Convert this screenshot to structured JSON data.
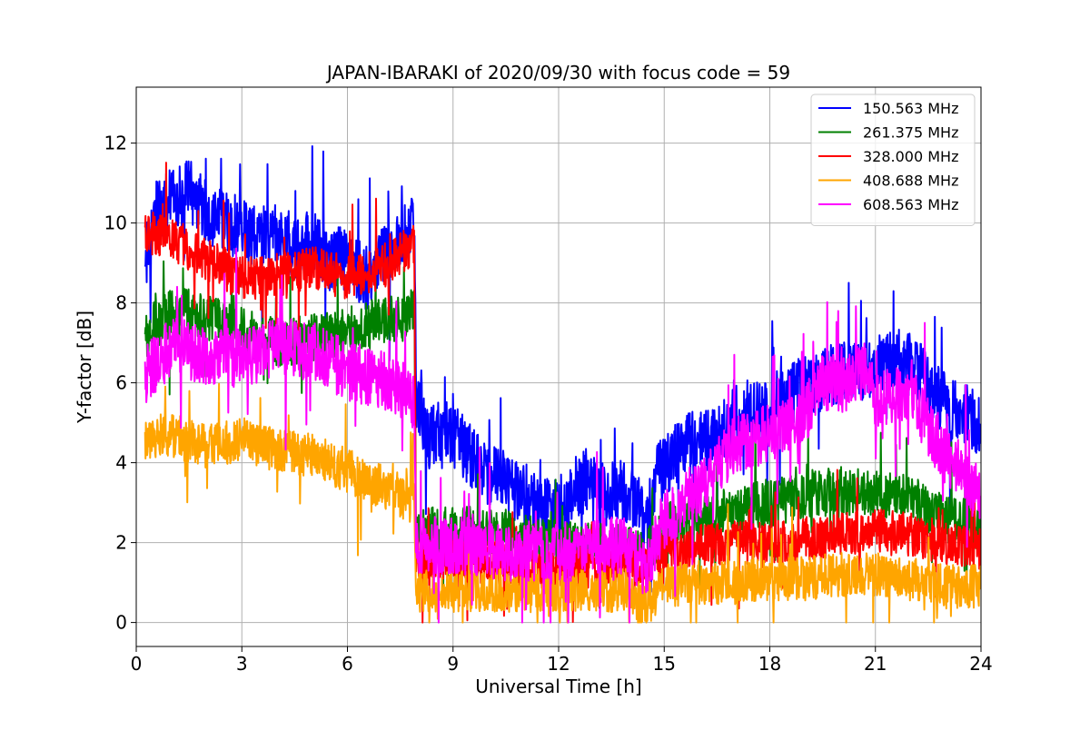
{
  "chart_data": {
    "type": "line",
    "title": "JAPAN-IBARAKI of 2020/09/30 with focus code = 59",
    "xlabel": "Universal Time [h]",
    "ylabel": "Y-factor [dB]",
    "xlim": [
      0,
      24
    ],
    "ylim": [
      -0.6,
      13.4
    ],
    "xticks": [
      0,
      3,
      6,
      9,
      12,
      15,
      18,
      21,
      24
    ],
    "yticks": [
      0,
      2,
      4,
      6,
      8,
      10,
      12
    ],
    "grid": true,
    "legend_position": "top-right",
    "data_start_hour": 0.25,
    "series": [
      {
        "name": "150.563 MHz",
        "color": "#0000ff",
        "noise": 0.8,
        "points": [
          [
            0.25,
            9.0
          ],
          [
            0.5,
            10.2
          ],
          [
            1.0,
            10.6
          ],
          [
            1.5,
            10.8
          ],
          [
            2.0,
            10.3
          ],
          [
            2.5,
            10.0
          ],
          [
            3.0,
            9.9
          ],
          [
            3.5,
            9.6
          ],
          [
            4.0,
            9.7
          ],
          [
            4.5,
            9.4
          ],
          [
            5.0,
            9.6
          ],
          [
            5.5,
            9.1
          ],
          [
            6.0,
            9.1
          ],
          [
            6.5,
            8.6
          ],
          [
            7.0,
            9.1
          ],
          [
            7.5,
            9.6
          ],
          [
            7.9,
            9.9
          ],
          [
            7.95,
            5.6
          ],
          [
            8.3,
            4.7
          ],
          [
            8.8,
            4.9
          ],
          [
            9.3,
            4.4
          ],
          [
            9.8,
            3.8
          ],
          [
            10.3,
            3.6
          ],
          [
            10.8,
            3.3
          ],
          [
            11.3,
            3.1
          ],
          [
            11.8,
            2.7
          ],
          [
            12.3,
            3.1
          ],
          [
            12.8,
            3.6
          ],
          [
            13.3,
            3.2
          ],
          [
            13.8,
            3.3
          ],
          [
            14.2,
            3.0
          ],
          [
            14.5,
            2.6
          ],
          [
            14.8,
            3.7
          ],
          [
            15.3,
            4.2
          ],
          [
            15.8,
            4.5
          ],
          [
            16.3,
            4.6
          ],
          [
            16.8,
            5.0
          ],
          [
            17.3,
            5.3
          ],
          [
            17.8,
            5.3
          ],
          [
            18.3,
            5.6
          ],
          [
            18.8,
            5.8
          ],
          [
            19.3,
            6.0
          ],
          [
            19.8,
            6.2
          ],
          [
            20.3,
            6.4
          ],
          [
            20.8,
            6.2
          ],
          [
            21.3,
            6.5
          ],
          [
            21.8,
            6.6
          ],
          [
            22.3,
            6.2
          ],
          [
            22.8,
            5.6
          ],
          [
            23.3,
            5.3
          ],
          [
            23.7,
            5.1
          ],
          [
            24.0,
            5.0
          ]
        ]
      },
      {
        "name": "261.375 MHz",
        "color": "#008000",
        "noise": 0.6,
        "points": [
          [
            0.25,
            7.2
          ],
          [
            0.6,
            7.5
          ],
          [
            1.2,
            7.9
          ],
          [
            2.0,
            7.6
          ],
          [
            3.0,
            7.3
          ],
          [
            4.0,
            7.0
          ],
          [
            5.0,
            7.1
          ],
          [
            6.0,
            7.3
          ],
          [
            7.0,
            7.6
          ],
          [
            7.6,
            7.6
          ],
          [
            7.9,
            8.0
          ],
          [
            7.95,
            2.2
          ],
          [
            8.5,
            2.3
          ],
          [
            9.5,
            2.3
          ],
          [
            10.5,
            2.2
          ],
          [
            11.5,
            2.0
          ],
          [
            12.5,
            1.9
          ],
          [
            13.5,
            1.9
          ],
          [
            14.2,
            1.8
          ],
          [
            14.5,
            1.7
          ],
          [
            15.0,
            2.4
          ],
          [
            16.0,
            2.6
          ],
          [
            17.0,
            2.8
          ],
          [
            18.0,
            3.0
          ],
          [
            19.0,
            3.2
          ],
          [
            20.0,
            3.3
          ],
          [
            21.0,
            3.2
          ],
          [
            22.0,
            3.1
          ],
          [
            23.0,
            2.6
          ],
          [
            24.0,
            2.4
          ]
        ]
      },
      {
        "name": "328.000 MHz",
        "color": "#ff0000",
        "noise": 0.55,
        "points": [
          [
            0.25,
            9.8
          ],
          [
            1.0,
            9.6
          ],
          [
            2.0,
            9.1
          ],
          [
            3.0,
            8.6
          ],
          [
            4.0,
            8.7
          ],
          [
            5.0,
            8.9
          ],
          [
            6.0,
            8.6
          ],
          [
            7.0,
            8.9
          ],
          [
            7.9,
            9.5
          ],
          [
            7.95,
            1.6
          ],
          [
            9.0,
            1.6
          ],
          [
            10.0,
            1.5
          ],
          [
            11.0,
            1.4
          ],
          [
            12.0,
            1.4
          ],
          [
            13.0,
            1.4
          ],
          [
            14.0,
            1.5
          ],
          [
            14.5,
            1.3
          ],
          [
            15.0,
            1.8
          ],
          [
            16.0,
            1.9
          ],
          [
            17.0,
            2.0
          ],
          [
            18.0,
            2.0
          ],
          [
            19.0,
            2.1
          ],
          [
            20.0,
            2.2
          ],
          [
            21.0,
            2.3
          ],
          [
            22.0,
            2.2
          ],
          [
            23.0,
            2.0
          ],
          [
            24.0,
            1.8
          ]
        ]
      },
      {
        "name": "408.688 MHz",
        "color": "#ffa500",
        "noise": 0.55,
        "points": [
          [
            0.25,
            4.6
          ],
          [
            1.0,
            4.7
          ],
          [
            2.0,
            4.4
          ],
          [
            3.0,
            4.6
          ],
          [
            4.0,
            4.3
          ],
          [
            5.0,
            4.2
          ],
          [
            6.0,
            3.8
          ],
          [
            7.0,
            3.4
          ],
          [
            7.9,
            3.0
          ],
          [
            7.95,
            0.8
          ],
          [
            9.0,
            0.8
          ],
          [
            10.0,
            0.8
          ],
          [
            11.0,
            0.8
          ],
          [
            12.0,
            0.8
          ],
          [
            13.0,
            0.8
          ],
          [
            14.0,
            0.8
          ],
          [
            14.5,
            0.4
          ],
          [
            15.0,
            0.9
          ],
          [
            16.0,
            1.0
          ],
          [
            17.0,
            1.0
          ],
          [
            18.0,
            1.1
          ],
          [
            19.0,
            1.1
          ],
          [
            20.0,
            1.2
          ],
          [
            21.0,
            1.2
          ],
          [
            22.0,
            1.1
          ],
          [
            23.0,
            0.9
          ],
          [
            24.0,
            0.9
          ]
        ]
      },
      {
        "name": "608.563 MHz",
        "color": "#ff00ff",
        "noise": 0.75,
        "points": [
          [
            0.25,
            6.2
          ],
          [
            1.0,
            6.9
          ],
          [
            2.0,
            6.7
          ],
          [
            3.0,
            6.6
          ],
          [
            4.0,
            6.9
          ],
          [
            5.0,
            6.8
          ],
          [
            6.0,
            6.3
          ],
          [
            7.0,
            6.1
          ],
          [
            7.9,
            5.6
          ],
          [
            7.95,
            1.9
          ],
          [
            8.5,
            1.9
          ],
          [
            9.5,
            1.9
          ],
          [
            10.5,
            1.8
          ],
          [
            11.5,
            1.7
          ],
          [
            12.5,
            1.8
          ],
          [
            13.5,
            2.0
          ],
          [
            14.0,
            1.9
          ],
          [
            14.5,
            1.3
          ],
          [
            15.0,
            2.6
          ],
          [
            15.5,
            3.0
          ],
          [
            16.0,
            3.3
          ],
          [
            16.5,
            3.9
          ],
          [
            17.0,
            4.4
          ],
          [
            17.5,
            4.6
          ],
          [
            18.0,
            4.7
          ],
          [
            18.5,
            4.9
          ],
          [
            19.0,
            5.2
          ],
          [
            19.5,
            6.1
          ],
          [
            20.0,
            5.9
          ],
          [
            20.5,
            6.2
          ],
          [
            20.8,
            6.5
          ],
          [
            21.0,
            5.6
          ],
          [
            21.5,
            5.6
          ],
          [
            22.0,
            5.9
          ],
          [
            22.5,
            4.9
          ],
          [
            23.0,
            4.2
          ],
          [
            23.5,
            3.8
          ],
          [
            24.0,
            3.0
          ]
        ]
      }
    ]
  }
}
